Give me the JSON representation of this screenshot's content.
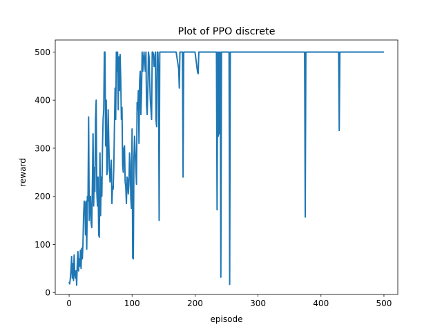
{
  "chart_data": {
    "type": "line",
    "title": "Plot of PPO discrete",
    "xlabel": "episode",
    "ylabel": "reward",
    "xlim": [
      -22,
      522
    ],
    "ylim": [
      -4,
      525
    ],
    "xticks": [
      0,
      100,
      200,
      300,
      400,
      500
    ],
    "yticks": [
      0,
      100,
      200,
      300,
      400,
      500
    ],
    "grid": false,
    "series_color": "#1f77b4",
    "series": [
      {
        "x": [
          0,
          1,
          2,
          3,
          4,
          5,
          6,
          7,
          8,
          9,
          10,
          11,
          12,
          13,
          14,
          15,
          16,
          17,
          18,
          19,
          20,
          21,
          22,
          23,
          24,
          25,
          26,
          27,
          28,
          29,
          30,
          31,
          32,
          33,
          34,
          35,
          36,
          37,
          38,
          39,
          40,
          41,
          42,
          43,
          44,
          45,
          46,
          47,
          48,
          49,
          50,
          51,
          52,
          53,
          54,
          55,
          56,
          57,
          58,
          59,
          60,
          61,
          62,
          63,
          64,
          65,
          66,
          67,
          68,
          69,
          70,
          71,
          72,
          73,
          74,
          75,
          76,
          77,
          78,
          79,
          80,
          81,
          82,
          83,
          84,
          85,
          86,
          87,
          88,
          89,
          90,
          91,
          92,
          93,
          94,
          95,
          96,
          97,
          98,
          99,
          100,
          101,
          102,
          103,
          104,
          105,
          106,
          107,
          108,
          109,
          110,
          111,
          112,
          113,
          114,
          115,
          116,
          117,
          118,
          119,
          120,
          121,
          122,
          123,
          124,
          125,
          126,
          127,
          128,
          129,
          130,
          131,
          132,
          133,
          134,
          135,
          136,
          137,
          138,
          139,
          140,
          141,
          142,
          143,
          144,
          145,
          146,
          147,
          148,
          149,
          150,
          151,
          152,
          153,
          154,
          155,
          156,
          157,
          158,
          159,
          160,
          165,
          170,
          174,
          175,
          176,
          180,
          181,
          182,
          183,
          190,
          200,
          204,
          205,
          206,
          210,
          220,
          230,
          234,
          235,
          236,
          237,
          238,
          239,
          240,
          241,
          242,
          243,
          250,
          254,
          255,
          256,
          260,
          300,
          350,
          374,
          375,
          376,
          380,
          420,
          428,
          429,
          430,
          440,
          500
        ],
        "y": [
          22,
          18,
          30,
          48,
          75,
          30,
          60,
          25,
          78,
          40,
          30,
          45,
          15,
          60,
          85,
          45,
          70,
          55,
          88,
          50,
          92,
          70,
          100,
          160,
          190,
          185,
          120,
          190,
          90,
          200,
          190,
          365,
          150,
          180,
          200,
          145,
          135,
          230,
          330,
          180,
          260,
          210,
          360,
          400,
          210,
          180,
          240,
          120,
          115,
          290,
          160,
          240,
          200,
          300,
          360,
          380,
          500,
          500,
          305,
          400,
          245,
          255,
          380,
          315,
          260,
          230,
          250,
          275,
          185,
          220,
          215,
          260,
          345,
          425,
          360,
          500,
          460,
          500,
          380,
          490,
          420,
          495,
          445,
          360,
          385,
          265,
          250,
          300,
          305,
          230,
          220,
          185,
          240,
          235,
          205,
          225,
          290,
          270,
          195,
          175,
          340,
          72,
          70,
          280,
          325,
          290,
          260,
          225,
          395,
          380,
          420,
          310,
          440,
          460,
          370,
          415,
          500,
          460,
          485,
          500,
          480,
          460,
          500,
          390,
          370,
          420,
          500,
          490,
          440,
          400,
          380,
          360,
          500,
          500,
          495,
          470,
          480,
          500,
          360,
          345,
          500,
          500,
          460,
          150,
          500,
          500,
          500,
          500,
          500,
          500,
          500,
          500,
          500,
          500,
          500,
          500,
          500,
          500,
          500,
          500,
          500,
          500,
          500,
          465,
          425,
          500,
          500,
          240,
          500,
          500,
          500,
          500,
          458,
          455,
          500,
          500,
          500,
          500,
          500,
          172,
          500,
          325,
          500,
          330,
          500,
          32,
          500,
          500,
          500,
          500,
          17,
          500,
          500,
          500,
          500,
          500,
          157,
          500,
          500,
          500,
          500,
          337,
          500,
          500,
          500
        ]
      }
    ]
  }
}
